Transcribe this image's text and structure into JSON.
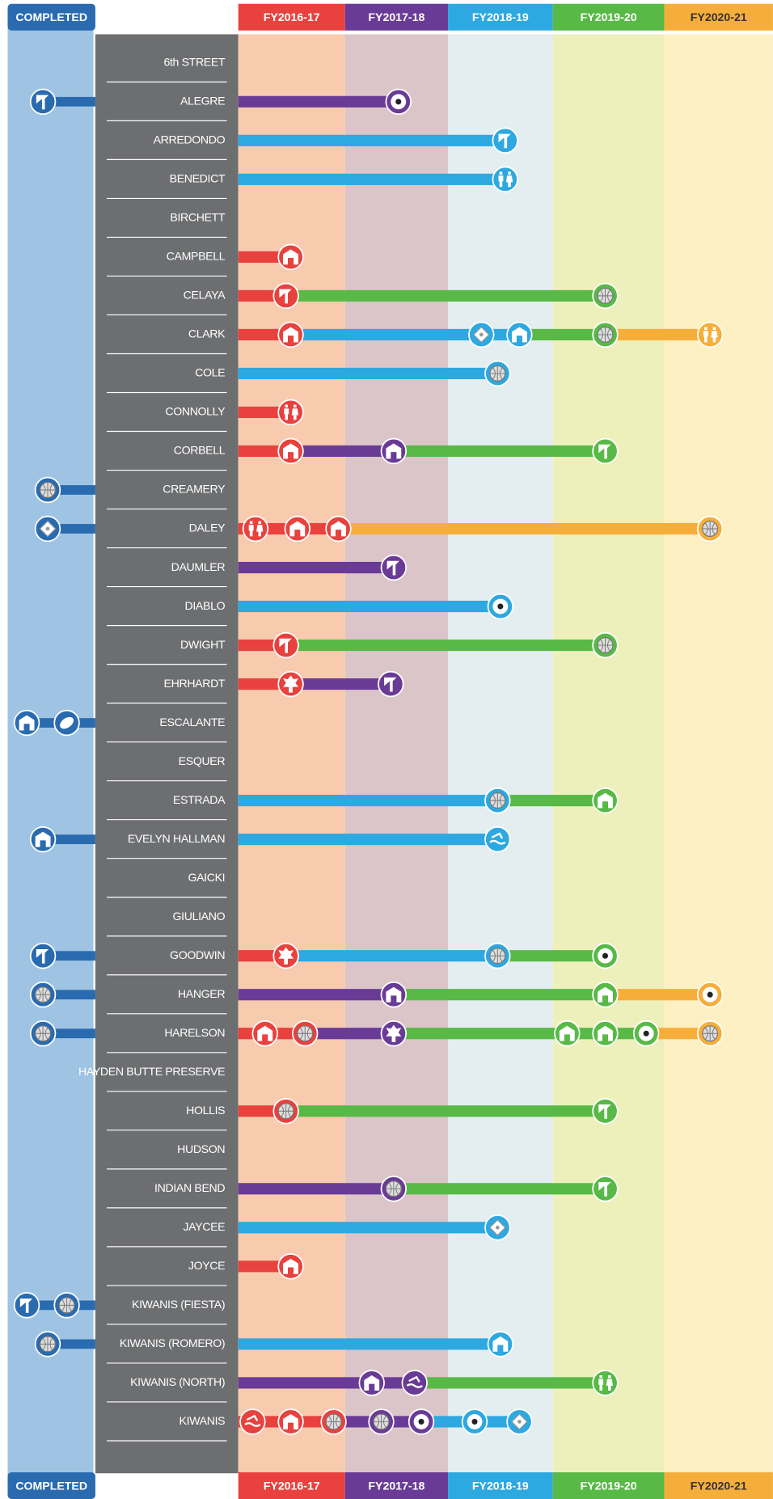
{
  "header": {
    "completed": "COMPLETED",
    "years": [
      "FY2016-17",
      "FY2017-18",
      "FY2018-19",
      "FY2019-20",
      "FY2020-21"
    ]
  },
  "parks": [
    "6th STREET",
    "ALEGRE",
    "ARREDONDO",
    "BENEDICT",
    "BIRCHETT",
    "CAMPBELL",
    "CELAYA",
    "CLARK",
    "COLE",
    "CONNOLLY",
    "CORBELL",
    "CREAMERY",
    "DALEY",
    "DAUMLER",
    "DIABLO",
    "DWIGHT",
    "EHRHARDT",
    "ESCALANTE",
    "ESQUER",
    "ESTRADA",
    "EVELYN HALLMAN",
    "GAICKI",
    "GIULIANO",
    "GOODWIN",
    "HANGER",
    "HARELSON",
    "HAYDEN BUTTE PRESERVE",
    "HOLLIS",
    "HUDSON",
    "INDIAN BEND",
    "JAYCEE",
    "JOYCE",
    "KIWANIS (FIESTA)",
    "KIWANIS (ROMERO)",
    "KIWANIS (NORTH)",
    "KIWANIS"
  ],
  "footer": {
    "completed": "COMPLETED",
    "years": [
      "FY2016-17",
      "FY2017-18",
      "FY2018-19",
      "FY2019-20",
      "FY2020-21"
    ]
  }
}
